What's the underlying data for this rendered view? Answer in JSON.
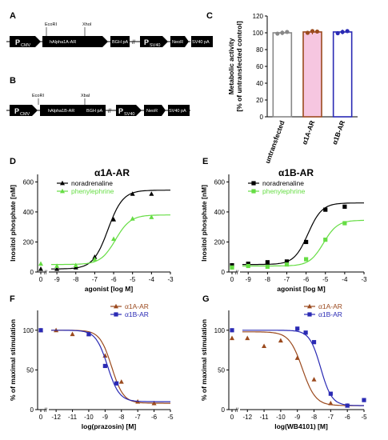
{
  "colors": {
    "black": "#000000",
    "green": "#66dd44",
    "brown": "#9b4a1e",
    "blue": "#2a2ab4",
    "pink": "#f6c6e0",
    "grey": "#888888"
  },
  "panelA": {
    "letter": "A",
    "sites": [
      "EcoRI",
      "XhoI"
    ],
    "promoter1": "P",
    "promoter1_sub": "CMV",
    "gene": "hAlpha1A-AR",
    "pa1": "BGH pA",
    "promoter2": "P",
    "promoter2_sub": "SV40",
    "marker": "NeoR",
    "pa2": "SV40 pA"
  },
  "panelB": {
    "letter": "B",
    "sites": [
      "EcoRI",
      "XbaI"
    ],
    "promoter1": "P",
    "promoter1_sub": "CMV",
    "gene": "hAlpha1B-AR",
    "pa1": "BGH pA",
    "promoter2": "P",
    "promoter2_sub": "SV40",
    "marker": "NeoR",
    "pa2": "SV40 pA"
  },
  "chart_data": [
    {
      "id": "C",
      "letter": "C",
      "type": "bar",
      "title": "",
      "ylabel": "Metabolic activity",
      "ylabel2": "[% of untransfected control]",
      "ylim": [
        0,
        120
      ],
      "yticks": [
        0,
        20,
        40,
        60,
        80,
        100,
        120
      ],
      "categories": [
        "untransfected",
        "α1A-AR",
        "α1B-AR"
      ],
      "values": [
        100,
        101,
        101
      ],
      "points": [
        [
          99,
          100,
          101
        ],
        [
          100,
          102,
          101.5
        ],
        [
          99.5,
          101,
          102
        ]
      ],
      "bar_edge_colors": [
        "#888888",
        "#9b4a1e",
        "#2a2ab4"
      ]
    },
    {
      "id": "D",
      "letter": "D",
      "type": "line",
      "title": "α1A-AR",
      "xlabel": "agonist [log M]",
      "ylabel": "Inositol phosphate [nM]",
      "ylim": [
        0,
        650
      ],
      "yticks": [
        0,
        200,
        400,
        600
      ],
      "xticks": [
        "0",
        "-9",
        "-8",
        "-7",
        "-6",
        "-5",
        "-4",
        "-3"
      ],
      "legend_position": "top-left",
      "series": [
        {
          "name": "noradrenaline",
          "marker": "triangle",
          "color": "#000000",
          "x": [
            0,
            -9,
            -8,
            -7,
            -6,
            -5,
            -4
          ],
          "y": [
            20,
            20,
            30,
            100,
            350,
            520,
            520
          ],
          "fit": {
            "bottom": 20,
            "top": 545,
            "logEC50": -6.3,
            "hill": 1.1
          }
        },
        {
          "name": "phenylephrine",
          "marker": "triangle",
          "color": "#66dd44",
          "x": [
            0,
            -9,
            -8,
            -7,
            -6,
            -5,
            -4
          ],
          "y": [
            55,
            40,
            45,
            85,
            220,
            355,
            365
          ],
          "fit": {
            "bottom": 50,
            "top": 380,
            "logEC50": -5.9,
            "hill": 1.1
          }
        }
      ]
    },
    {
      "id": "E",
      "letter": "E",
      "type": "line",
      "title": "α1B-AR",
      "xlabel": "agonist [log M]",
      "ylabel": "Inositol phosphate [nM]",
      "ylim": [
        0,
        650
      ],
      "yticks": [
        0,
        200,
        400,
        600
      ],
      "xticks": [
        "0",
        "-9",
        "-8",
        "-7",
        "-6",
        "-5",
        "-4",
        "-3"
      ],
      "legend_position": "top-left",
      "series": [
        {
          "name": "noradrenaline",
          "marker": "square",
          "color": "#000000",
          "x": [
            0,
            -9,
            -8,
            -7,
            -6,
            -5,
            -4
          ],
          "y": [
            45,
            55,
            65,
            70,
            200,
            415,
            435
          ],
          "fit": {
            "bottom": 50,
            "top": 460,
            "logEC50": -5.9,
            "hill": 1.2
          }
        },
        {
          "name": "phenylephrine",
          "marker": "square",
          "color": "#66dd44",
          "x": [
            0,
            -9,
            -8,
            -7,
            -6,
            -5,
            -4
          ],
          "y": [
            30,
            40,
            35,
            50,
            85,
            215,
            325
          ],
          "fit": {
            "bottom": 40,
            "top": 345,
            "logEC50": -5.1,
            "hill": 1.2
          }
        }
      ]
    },
    {
      "id": "F",
      "letter": "F",
      "type": "line",
      "title": "",
      "xlabel": "log(prazosin) [M]",
      "ylabel": "% of maximal stimulation",
      "ylim": [
        0,
        125
      ],
      "yticks": [
        0,
        50,
        100
      ],
      "xticks": [
        "0",
        "-12",
        "-11",
        "-10",
        "-9",
        "-8",
        "-7",
        "-6",
        "-5"
      ],
      "legend_position": "top-right",
      "series": [
        {
          "name": "α1A-AR",
          "marker": "triangle",
          "color": "#9b4a1e",
          "x": [
            0,
            -12,
            -11,
            -10,
            -9,
            -8,
            -7,
            -6
          ],
          "y": [
            100,
            100,
            95,
            95,
            68,
            35,
            10,
            8
          ],
          "fit": {
            "bottom": 8,
            "top": 100,
            "logEC50": -8.6,
            "hill": -1.2
          }
        },
        {
          "name": "α1B-AR",
          "marker": "square",
          "color": "#2a2ab4",
          "x": [
            0,
            -10,
            -9,
            -8.3
          ],
          "y": [
            100,
            95,
            55,
            33
          ],
          "fit": {
            "bottom": 10,
            "top": 100,
            "logEC50": -8.85,
            "hill": -1.2
          }
        }
      ]
    },
    {
      "id": "G",
      "letter": "G",
      "type": "line",
      "title": "",
      "xlabel": "log(WB4101) [M]",
      "ylabel": "% of maximal stimulation",
      "ylim": [
        0,
        125
      ],
      "yticks": [
        0,
        50,
        100
      ],
      "xticks": [
        "0",
        "-12",
        "-11",
        "-10",
        "-9",
        "-8",
        "-7",
        "-6",
        "-5"
      ],
      "legend_position": "top-right",
      "series": [
        {
          "name": "α1A-AR",
          "marker": "triangle",
          "color": "#9b4a1e",
          "x": [
            0,
            -12,
            -11,
            -10,
            -9,
            -8,
            -7,
            -6
          ],
          "y": [
            90,
            90,
            80,
            87,
            65,
            38,
            8,
            5
          ],
          "fit": {
            "bottom": 5,
            "top": 98,
            "logEC50": -8.7,
            "hill": -1.1
          }
        },
        {
          "name": "α1B-AR",
          "marker": "square",
          "color": "#2a2ab4",
          "x": [
            0,
            -9,
            -8.5,
            -8,
            -7,
            -6,
            -5
          ],
          "y": [
            100,
            102,
            97,
            85,
            20,
            5,
            12
          ],
          "fit": {
            "bottom": 5,
            "top": 100,
            "logEC50": -7.6,
            "hill": -1.3
          }
        }
      ]
    }
  ]
}
